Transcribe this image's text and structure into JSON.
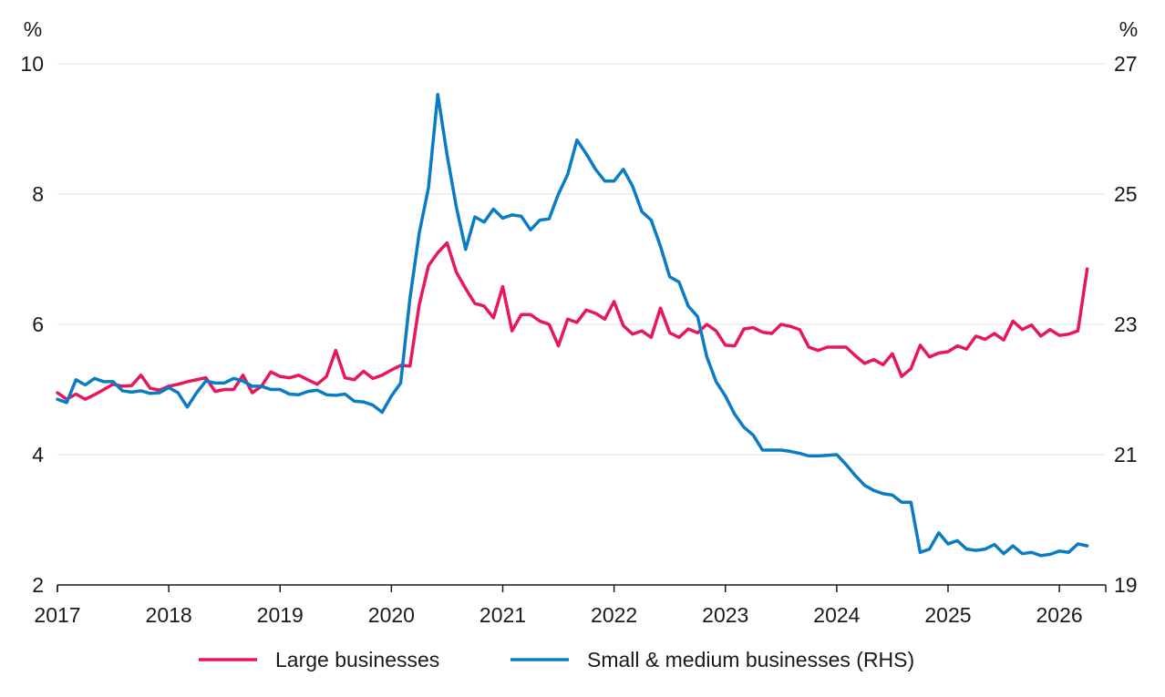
{
  "chart_data": {
    "type": "line",
    "title": "",
    "xlabel": "",
    "y_left": {
      "unit": "%",
      "lim": [
        2,
        10
      ],
      "ticks": [
        2,
        4,
        6,
        8,
        10
      ]
    },
    "y_right": {
      "unit": "%",
      "lim": [
        19,
        27
      ],
      "ticks": [
        19,
        21,
        23,
        25,
        27
      ]
    },
    "x_ticks": [
      "2017",
      "2018",
      "2019",
      "2020",
      "2021",
      "2022",
      "2023",
      "2024",
      "2025",
      "2026"
    ],
    "x_range": [
      "2017-01",
      "2026-06"
    ],
    "grid": "horizontal",
    "legend_position": "bottom",
    "series": [
      {
        "name": "Large businesses",
        "axis": "left",
        "color": "#e8175d",
        "points": [
          [
            "2017-01",
            4.95
          ],
          [
            "2017-02",
            4.85
          ],
          [
            "2017-03",
            4.93
          ],
          [
            "2017-04",
            4.85
          ],
          [
            "2017-05",
            4.92
          ],
          [
            "2017-06",
            5.0
          ],
          [
            "2017-07",
            5.08
          ],
          [
            "2017-08",
            5.05
          ],
          [
            "2017-09",
            5.06
          ],
          [
            "2017-10",
            5.22
          ],
          [
            "2017-11",
            5.02
          ],
          [
            "2017-12",
            4.99
          ],
          [
            "2018-01",
            5.05
          ],
          [
            "2018-02",
            5.08
          ],
          [
            "2018-03",
            5.12
          ],
          [
            "2018-04",
            5.15
          ],
          [
            "2018-05",
            5.18
          ],
          [
            "2018-06",
            4.97
          ],
          [
            "2018-07",
            5.0
          ],
          [
            "2018-08",
            5.0
          ],
          [
            "2018-09",
            5.22
          ],
          [
            "2018-10",
            4.95
          ],
          [
            "2018-11",
            5.05
          ],
          [
            "2018-12",
            5.27
          ],
          [
            "2019-01",
            5.2
          ],
          [
            "2019-02",
            5.18
          ],
          [
            "2019-03",
            5.22
          ],
          [
            "2019-04",
            5.15
          ],
          [
            "2019-05",
            5.08
          ],
          [
            "2019-06",
            5.2
          ],
          [
            "2019-07",
            5.6
          ],
          [
            "2019-08",
            5.18
          ],
          [
            "2019-09",
            5.15
          ],
          [
            "2019-10",
            5.28
          ],
          [
            "2019-11",
            5.17
          ],
          [
            "2019-12",
            5.22
          ],
          [
            "2020-01",
            5.3
          ],
          [
            "2020-02",
            5.37
          ],
          [
            "2020-03",
            5.36
          ],
          [
            "2020-04",
            6.3
          ],
          [
            "2020-05",
            6.9
          ],
          [
            "2020-06",
            7.1
          ],
          [
            "2020-07",
            7.25
          ],
          [
            "2020-08",
            6.8
          ],
          [
            "2020-09",
            6.55
          ],
          [
            "2020-10",
            6.32
          ],
          [
            "2020-11",
            6.28
          ],
          [
            "2020-12",
            6.1
          ],
          [
            "2021-01",
            6.58
          ],
          [
            "2021-02",
            5.9
          ],
          [
            "2021-03",
            6.15
          ],
          [
            "2021-04",
            6.15
          ],
          [
            "2021-05",
            6.05
          ],
          [
            "2021-06",
            6.0
          ],
          [
            "2021-07",
            5.67
          ],
          [
            "2021-08",
            6.08
          ],
          [
            "2021-09",
            6.03
          ],
          [
            "2021-10",
            6.22
          ],
          [
            "2021-11",
            6.17
          ],
          [
            "2021-12",
            6.08
          ],
          [
            "2022-01",
            6.35
          ],
          [
            "2022-02",
            5.98
          ],
          [
            "2022-03",
            5.85
          ],
          [
            "2022-04",
            5.9
          ],
          [
            "2022-05",
            5.8
          ],
          [
            "2022-06",
            6.25
          ],
          [
            "2022-07",
            5.87
          ],
          [
            "2022-08",
            5.8
          ],
          [
            "2022-09",
            5.93
          ],
          [
            "2022-10",
            5.87
          ],
          [
            "2022-11",
            6.0
          ],
          [
            "2022-12",
            5.9
          ],
          [
            "2023-01",
            5.68
          ],
          [
            "2023-02",
            5.67
          ],
          [
            "2023-03",
            5.93
          ],
          [
            "2023-04",
            5.95
          ],
          [
            "2023-05",
            5.88
          ],
          [
            "2023-06",
            5.86
          ],
          [
            "2023-07",
            6.0
          ],
          [
            "2023-08",
            5.97
          ],
          [
            "2023-09",
            5.92
          ],
          [
            "2023-10",
            5.65
          ],
          [
            "2023-11",
            5.6
          ],
          [
            "2023-12",
            5.65
          ],
          [
            "2024-01",
            5.65
          ],
          [
            "2024-02",
            5.65
          ],
          [
            "2024-03",
            5.52
          ],
          [
            "2024-04",
            5.4
          ],
          [
            "2024-05",
            5.46
          ],
          [
            "2024-06",
            5.38
          ],
          [
            "2024-07",
            5.55
          ],
          [
            "2024-08",
            5.2
          ],
          [
            "2024-09",
            5.32
          ],
          [
            "2024-10",
            5.68
          ],
          [
            "2024-11",
            5.5
          ],
          [
            "2024-12",
            5.56
          ],
          [
            "2025-01",
            5.58
          ],
          [
            "2025-02",
            5.67
          ],
          [
            "2025-03",
            5.62
          ],
          [
            "2025-04",
            5.82
          ],
          [
            "2025-05",
            5.77
          ],
          [
            "2025-06",
            5.86
          ],
          [
            "2025-07",
            5.76
          ],
          [
            "2025-08",
            6.05
          ],
          [
            "2025-09",
            5.92
          ],
          [
            "2025-10",
            5.99
          ],
          [
            "2025-11",
            5.82
          ],
          [
            "2025-12",
            5.92
          ],
          [
            "2026-01",
            5.83
          ],
          [
            "2026-02",
            5.85
          ],
          [
            "2026-03",
            5.9
          ],
          [
            "2026-04",
            6.85
          ]
        ]
      },
      {
        "name": "Small & medium businesses (RHS)",
        "axis": "right",
        "color": "#0a7cc4",
        "points": [
          [
            "2017-01",
            21.85
          ],
          [
            "2017-02",
            21.8
          ],
          [
            "2017-03",
            22.15
          ],
          [
            "2017-04",
            22.07
          ],
          [
            "2017-05",
            22.17
          ],
          [
            "2017-06",
            22.12
          ],
          [
            "2017-07",
            22.12
          ],
          [
            "2017-08",
            21.98
          ],
          [
            "2017-09",
            21.96
          ],
          [
            "2017-10",
            21.98
          ],
          [
            "2017-11",
            21.94
          ],
          [
            "2017-12",
            21.95
          ],
          [
            "2018-01",
            22.03
          ],
          [
            "2018-02",
            21.95
          ],
          [
            "2018-03",
            21.73
          ],
          [
            "2018-04",
            21.95
          ],
          [
            "2018-05",
            22.13
          ],
          [
            "2018-06",
            22.1
          ],
          [
            "2018-07",
            22.1
          ],
          [
            "2018-08",
            22.17
          ],
          [
            "2018-09",
            22.13
          ],
          [
            "2018-10",
            22.05
          ],
          [
            "2018-11",
            22.05
          ],
          [
            "2018-12",
            22.0
          ],
          [
            "2019-01",
            22.0
          ],
          [
            "2019-02",
            21.93
          ],
          [
            "2019-03",
            21.92
          ],
          [
            "2019-04",
            21.97
          ],
          [
            "2019-05",
            21.99
          ],
          [
            "2019-06",
            21.92
          ],
          [
            "2019-07",
            21.91
          ],
          [
            "2019-08",
            21.93
          ],
          [
            "2019-09",
            21.82
          ],
          [
            "2019-10",
            21.81
          ],
          [
            "2019-11",
            21.76
          ],
          [
            "2019-12",
            21.65
          ],
          [
            "2020-01",
            21.9
          ],
          [
            "2020-02",
            22.1
          ],
          [
            "2020-03",
            23.4
          ],
          [
            "2020-04",
            24.4
          ],
          [
            "2020-05",
            25.1
          ],
          [
            "2020-06",
            26.53
          ],
          [
            "2020-07",
            25.6
          ],
          [
            "2020-08",
            24.8
          ],
          [
            "2020-09",
            24.15
          ],
          [
            "2020-10",
            24.65
          ],
          [
            "2020-11",
            24.57
          ],
          [
            "2020-12",
            24.77
          ],
          [
            "2021-01",
            24.63
          ],
          [
            "2021-02",
            24.68
          ],
          [
            "2021-03",
            24.66
          ],
          [
            "2021-04",
            24.45
          ],
          [
            "2021-05",
            24.6
          ],
          [
            "2021-06",
            24.62
          ],
          [
            "2021-07",
            25.0
          ],
          [
            "2021-08",
            25.3
          ],
          [
            "2021-09",
            25.83
          ],
          [
            "2021-10",
            25.62
          ],
          [
            "2021-11",
            25.38
          ],
          [
            "2021-12",
            25.2
          ],
          [
            "2022-01",
            25.2
          ],
          [
            "2022-02",
            25.38
          ],
          [
            "2022-03",
            25.12
          ],
          [
            "2022-04",
            24.73
          ],
          [
            "2022-05",
            24.6
          ],
          [
            "2022-06",
            24.2
          ],
          [
            "2022-07",
            23.73
          ],
          [
            "2022-08",
            23.65
          ],
          [
            "2022-09",
            23.28
          ],
          [
            "2022-10",
            23.12
          ],
          [
            "2022-11",
            22.5
          ],
          [
            "2022-12",
            22.12
          ],
          [
            "2023-01",
            21.9
          ],
          [
            "2023-02",
            21.62
          ],
          [
            "2023-03",
            21.42
          ],
          [
            "2023-04",
            21.3
          ],
          [
            "2023-05",
            21.07
          ],
          [
            "2023-06",
            21.07
          ],
          [
            "2023-07",
            21.07
          ],
          [
            "2023-08",
            21.05
          ],
          [
            "2023-09",
            21.02
          ],
          [
            "2023-10",
            20.98
          ],
          [
            "2023-11",
            20.98
          ],
          [
            "2023-12",
            20.99
          ],
          [
            "2024-01",
            21.0
          ],
          [
            "2024-02",
            20.85
          ],
          [
            "2024-03",
            20.68
          ],
          [
            "2024-04",
            20.53
          ],
          [
            "2024-05",
            20.45
          ],
          [
            "2024-06",
            20.4
          ],
          [
            "2024-07",
            20.38
          ],
          [
            "2024-08",
            20.27
          ],
          [
            "2024-09",
            20.27
          ],
          [
            "2024-10",
            19.5
          ],
          [
            "2024-11",
            19.55
          ],
          [
            "2024-12",
            19.8
          ],
          [
            "2025-01",
            19.63
          ],
          [
            "2025-02",
            19.68
          ],
          [
            "2025-03",
            19.55
          ],
          [
            "2025-04",
            19.53
          ],
          [
            "2025-05",
            19.55
          ],
          [
            "2025-06",
            19.62
          ],
          [
            "2025-07",
            19.48
          ],
          [
            "2025-08",
            19.6
          ],
          [
            "2025-09",
            19.48
          ],
          [
            "2025-10",
            19.5
          ],
          [
            "2025-11",
            19.45
          ],
          [
            "2025-12",
            19.47
          ],
          [
            "2026-01",
            19.52
          ],
          [
            "2026-02",
            19.5
          ],
          [
            "2026-03",
            19.63
          ],
          [
            "2026-04",
            19.6
          ]
        ]
      }
    ]
  }
}
